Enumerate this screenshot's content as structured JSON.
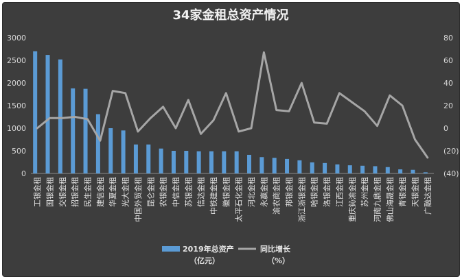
{
  "chart_data": {
    "type": "bar",
    "title": "34家金租总资产情况",
    "categories": [
      "工银金租",
      "国银金租",
      "交银金租",
      "招银金租",
      "民生金租",
      "建信金租",
      "华夏金租",
      "光大金租",
      "中国外贸金租",
      "昆仑金租",
      "农银金租",
      "中信金租",
      "苏银金租",
      "信达金租",
      "中铁建金租",
      "徽银金租",
      "太平石化金租",
      "河北金租",
      "永赢金租",
      "渝农商金租",
      "邦银金租",
      "浙江浙银金租",
      "哈银金租",
      "洛银金租",
      "江西金租",
      "重庆鈊渝金租",
      "苏州金租",
      "河南九鼎金租",
      "佛山海晟金租",
      "青银金租",
      "天银金租",
      "广融达金租"
    ],
    "series": [
      {
        "name": "2019年总资产\n（亿元）",
        "type": "bar",
        "axis": "left",
        "color": "#5b9bd5",
        "values": [
          2700,
          2620,
          2520,
          1880,
          1870,
          1310,
          1000,
          950,
          640,
          640,
          550,
          500,
          500,
          490,
          490,
          490,
          490,
          410,
          360,
          345,
          320,
          290,
          245,
          230,
          200,
          180,
          170,
          160,
          140,
          90,
          80,
          25
        ]
      },
      {
        "name": "同比增长\n（%）",
        "type": "line",
        "axis": "right",
        "color": "#a6a6a6",
        "values": [
          0,
          9,
          9,
          10,
          8,
          -11,
          33,
          31,
          -3,
          9,
          19,
          0,
          25,
          -5,
          7,
          31,
          -3,
          0,
          67,
          16,
          15,
          40,
          5,
          4,
          31,
          23,
          15,
          2,
          29,
          20,
          -10,
          -26
        ]
      }
    ],
    "ylim": [
      0,
      3000
    ],
    "yticks": [
      0,
      500,
      1000,
      1500,
      2000,
      2500,
      3000
    ],
    "y2lim": [
      -40,
      80
    ],
    "y2ticks": [
      -40,
      -20,
      0,
      20,
      40,
      60,
      80
    ],
    "y2tick_labels": [
      "(40)",
      "(20)",
      "0",
      "20",
      "40",
      "60",
      "80"
    ],
    "negative_tick_color": "#ff0000",
    "legend_position": "bottom",
    "grid": false
  }
}
